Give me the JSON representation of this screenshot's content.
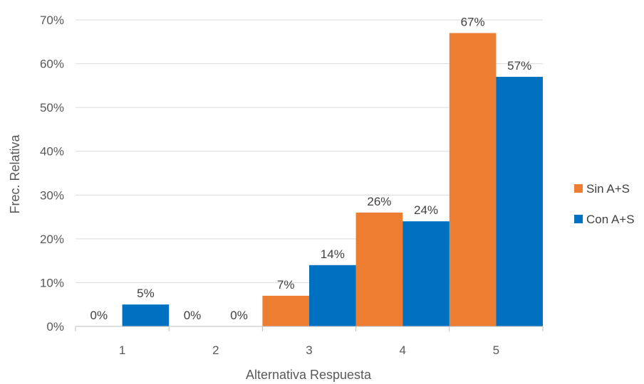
{
  "chart_data": {
    "type": "bar",
    "categories": [
      "1",
      "2",
      "3",
      "4",
      "5"
    ],
    "series": [
      {
        "name": "Sin A+S",
        "values": [
          0,
          0,
          7,
          26,
          67
        ],
        "labels": [
          "0%",
          "0%",
          "7%",
          "26%",
          "67%"
        ],
        "color": "#ED7D31"
      },
      {
        "name": "Con A+S",
        "values": [
          5,
          0,
          14,
          24,
          57
        ],
        "labels": [
          "5%",
          "0%",
          "14%",
          "24%",
          "57%"
        ],
        "color": "#0070C0"
      }
    ],
    "xlabel": "Alternativa Respuesta",
    "ylabel": "Frec. Relativa",
    "ylim": [
      0,
      70
    ],
    "yticks": [
      0,
      10,
      20,
      30,
      40,
      50,
      60,
      70
    ],
    "ytick_labels": [
      "0%",
      "10%",
      "20%",
      "30%",
      "40%",
      "50%",
      "60%",
      "70%"
    ],
    "grid": true,
    "legend_position": "right"
  }
}
